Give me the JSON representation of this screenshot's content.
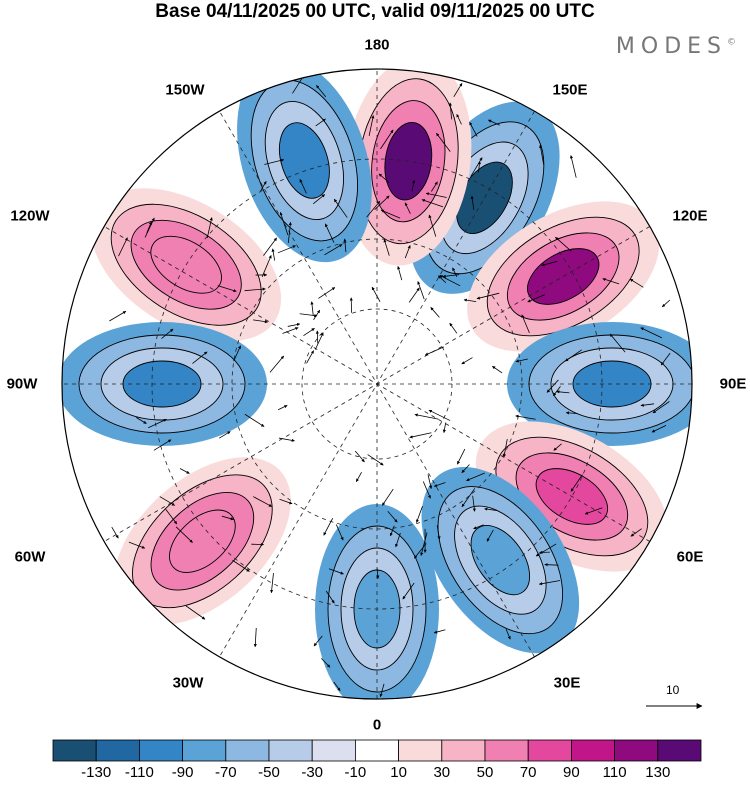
{
  "title": "Base 04/11/2025 00 UTC, valid 09/11/2025 00 UTC",
  "brand": {
    "name": "MODES",
    "mark": "©"
  },
  "longitude_labels": {
    "lon_180": "180",
    "lon_150w": "150W",
    "lon_150e": "150E",
    "lon_120w": "120W",
    "lon_120e": "120E",
    "lon_90w": "90W",
    "lon_90e": "90E",
    "lon_60w": "60W",
    "lon_60e": "60E",
    "lon_30w": "30W",
    "lon_30e": "30E",
    "lon_0": "0"
  },
  "reference_vector": {
    "label": "10"
  },
  "colorbar": {
    "colors": [
      "#1a4f74",
      "#2168a3",
      "#3385c6",
      "#5ba3d6",
      "#8db8e2",
      "#b7cce8",
      "#dcdff0",
      "#ffffff",
      "#fadbdb",
      "#f6b4c6",
      "#f080b2",
      "#e4489e",
      "#c0168a",
      "#8e0a7e",
      "#5a0a75"
    ],
    "labels": [
      "-130",
      "-110",
      "-90",
      "-70",
      "-50",
      "-30",
      "-10",
      "10",
      "30",
      "50",
      "70",
      "90",
      "110",
      "130"
    ]
  },
  "anomaly_centers": [
    {
      "sign": "neg",
      "value": -130,
      "color": "#1a4f74",
      "azimuth": 150
    },
    {
      "sign": "pos",
      "value": 130,
      "color": "#5a0a75",
      "azimuth": 172
    },
    {
      "sign": "neg",
      "value": -90,
      "color": "#3385c6",
      "azimuth": -162
    },
    {
      "sign": "pos",
      "value": 110,
      "color": "#8e0a7e",
      "azimuth": 120
    },
    {
      "sign": "pos",
      "value": 70,
      "color": "#f080b2",
      "azimuth": -122
    },
    {
      "sign": "neg",
      "value": -70,
      "color": "#3385c6",
      "azimuth": 90
    },
    {
      "sign": "neg",
      "value": -90,
      "color": "#3385c6",
      "azimuth": -90
    },
    {
      "sign": "pos",
      "value": 90,
      "color": "#e4489e",
      "azimuth": 60
    },
    {
      "sign": "pos",
      "value": 70,
      "color": "#f080b2",
      "azimuth": -48
    },
    {
      "sign": "neg",
      "value": -50,
      "color": "#5ba3d6",
      "azimuth": 35
    },
    {
      "sign": "neg",
      "value": -50,
      "color": "#5ba3d6",
      "azimuth": 0
    }
  ]
}
